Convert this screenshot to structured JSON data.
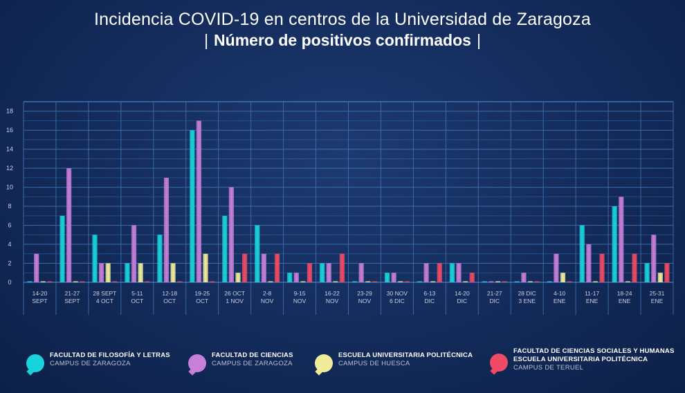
{
  "header": {
    "title": "Incidencia COVID-19 en centros de la Universidad de Zaragoza",
    "subtitle": "Número de positivos confirmados",
    "subtitle_bar": "|"
  },
  "chart_data": {
    "type": "bar",
    "title": "Incidencia COVID-19 en centros de la Universidad de Zaragoza",
    "subtitle": "Número de positivos confirmados",
    "xlabel": "",
    "ylabel": "",
    "ylim": [
      0,
      19
    ],
    "yticks": [
      0,
      2,
      4,
      6,
      8,
      10,
      12,
      14,
      16,
      18
    ],
    "grid": true,
    "legend_position": "bottom",
    "categories": [
      [
        "14-20",
        "SEPT"
      ],
      [
        "21-27",
        "SEPT"
      ],
      [
        "28 SEPT",
        "4 OCT"
      ],
      [
        "5-11",
        "OCT"
      ],
      [
        "12-18",
        "OCT"
      ],
      [
        "19-25",
        "OCT"
      ],
      [
        "26 OCT",
        "1 NOV"
      ],
      [
        "2-8",
        "NOV"
      ],
      [
        "9-15",
        "NOV"
      ],
      [
        "16-22",
        "NOV"
      ],
      [
        "23-29",
        "NOV"
      ],
      [
        "30 NOV",
        "6 DIC"
      ],
      [
        "6-13",
        "DIC"
      ],
      [
        "14-20",
        "DIC"
      ],
      [
        "21-27",
        "DIC"
      ],
      [
        "28 DIC",
        "3 ENE"
      ],
      [
        "4-10",
        "ENE"
      ],
      [
        "11-17",
        "ENE"
      ],
      [
        "18-24",
        "ENE"
      ],
      [
        "25-31",
        "ENE"
      ]
    ],
    "series": [
      {
        "name": "FACULTAD DE FILOSOFÍA Y LETRAS",
        "campus": "CAMPUS DE ZARAGOZA",
        "color": "#19d3dc",
        "values": [
          0,
          7,
          5,
          2,
          5,
          16,
          7,
          6,
          1,
          2,
          0,
          1,
          0,
          2,
          0,
          0,
          0,
          6,
          8,
          2
        ]
      },
      {
        "name": "FACULTAD DE CIENCIAS",
        "campus": "CAMPUS DE ZARAGOZA",
        "color": "#c77fd8",
        "values": [
          3,
          12,
          2,
          6,
          11,
          17,
          10,
          3,
          1,
          2,
          2,
          1,
          2,
          2,
          0,
          1,
          3,
          4,
          9,
          5
        ]
      },
      {
        "name": "ESCUELA UNIVERSITARIA POLITÉCNICA",
        "campus": "CAMPUS DE HUESCA",
        "color": "#f1ec9a",
        "values": [
          0,
          0,
          2,
          2,
          2,
          3,
          1,
          0,
          0,
          0,
          0,
          0,
          0,
          0,
          0,
          0,
          1,
          0,
          0,
          1
        ]
      },
      {
        "name": "FACULTAD DE CIENCIAS SOCIALES Y HUMANAS",
        "name2": "ESCUELA UNIVERSITARIA POLITÉCNICA",
        "campus": "CAMPUS DE TERUEL",
        "color": "#f04a64",
        "values": [
          0,
          0,
          0,
          0,
          0,
          0,
          3,
          3,
          2,
          3,
          0,
          0,
          2,
          1,
          0,
          0,
          0,
          3,
          3,
          2
        ]
      }
    ]
  },
  "colors": {
    "grid": "#3f73b3",
    "axis_text": "#c9d2e3",
    "frame": "#4a80c2"
  }
}
